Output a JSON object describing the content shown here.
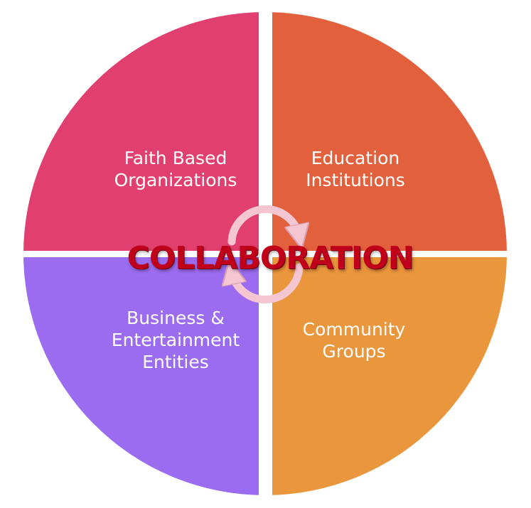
{
  "center": {
    "title": "COLLABORATION"
  },
  "quadrants": [
    {
      "id": "top-left",
      "lines": [
        "Faith Based",
        "Organizations"
      ],
      "color": "#e03f6f"
    },
    {
      "id": "top-right",
      "lines": [
        "Education",
        "Institutions"
      ],
      "color": "#e3603d"
    },
    {
      "id": "bottom-left",
      "lines": [
        "Business &",
        "Entertainment",
        "Entities"
      ],
      "color": "#9b6cef"
    },
    {
      "id": "bottom-right",
      "lines": [
        "Community",
        "Groups"
      ],
      "color": "#e9963c"
    }
  ],
  "cycle_arrows": {
    "color": "#f3c6d2",
    "icon": "cycle-arrows-icon"
  }
}
